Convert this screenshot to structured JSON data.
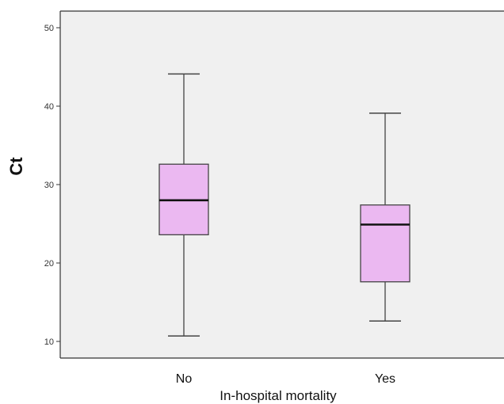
{
  "chart_data": {
    "type": "boxplot",
    "xlabel": "In-hospital mortality",
    "ylabel": "Ct",
    "categories": [
      "No",
      "Yes"
    ],
    "ylim": [
      8,
      52
    ],
    "yticks": [
      10,
      20,
      30,
      40,
      50
    ],
    "grid": false,
    "boxes": [
      {
        "category": "No",
        "whisker_low": 10.7,
        "q1": 23.6,
        "median": 28.0,
        "q3": 32.6,
        "whisker_high": 44.1
      },
      {
        "category": "Yes",
        "whisker_low": 12.6,
        "q1": 17.6,
        "median": 24.9,
        "q3": 27.4,
        "whisker_high": 39.1
      }
    ],
    "colors": {
      "plot_background": "#f0f0f0",
      "box_fill": "#ebb8f1",
      "box_stroke": "#444444",
      "median_line": "#111111",
      "axis": "#333333"
    }
  }
}
